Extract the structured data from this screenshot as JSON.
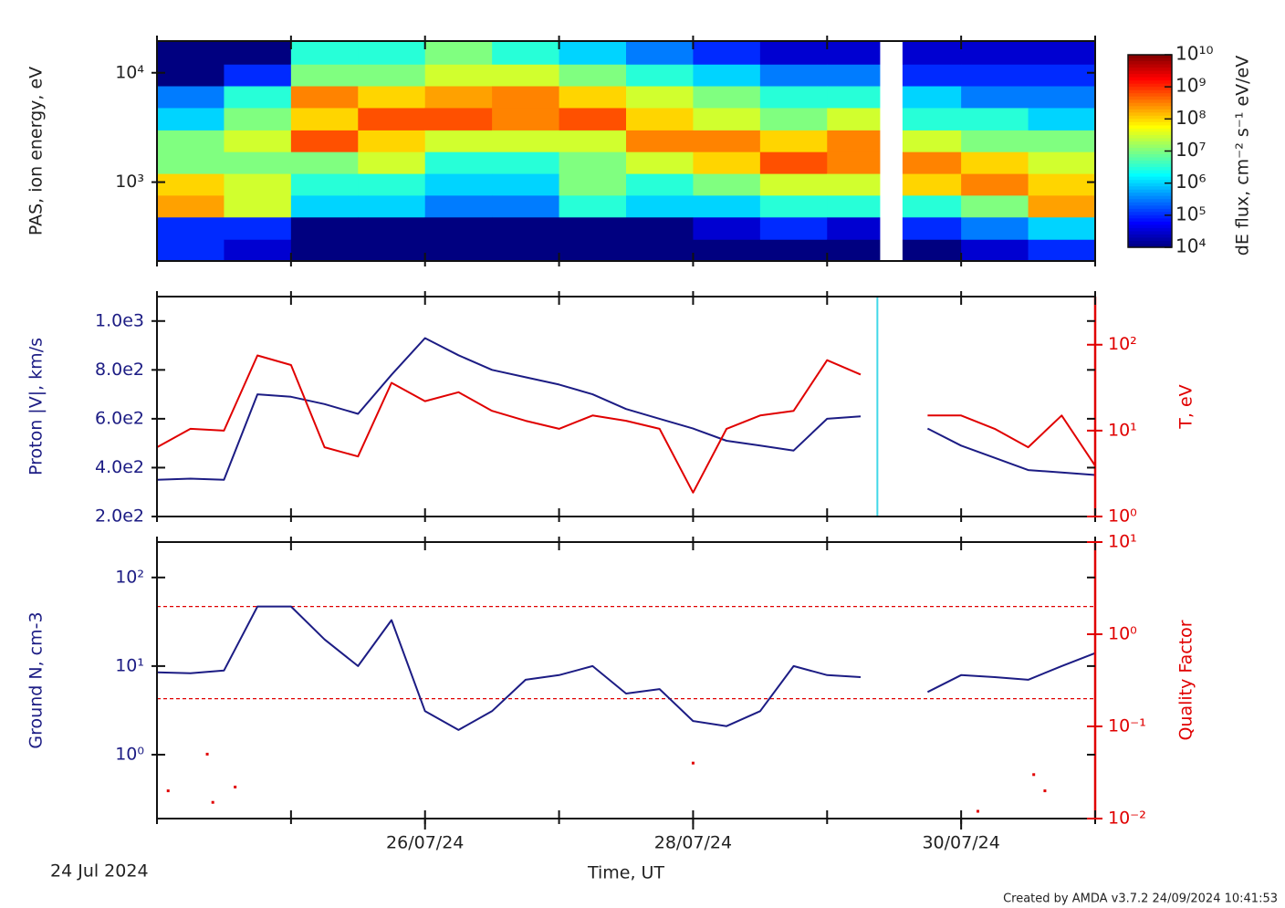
{
  "chart_data": [
    {
      "type": "heatmap",
      "ylabel": "PAS, ion energy, eV",
      "zlabel": "dE flux, cm⁻² s⁻¹ eV/eV",
      "xlim": [
        "2024-07-24T00:00",
        "2024-07-31T00:00"
      ],
      "xticks": [
        "2024-07-24T00:00",
        "2024-07-25T00:00",
        "2024-07-26T00:00",
        "2024-07-27T00:00",
        "2024-07-28T00:00",
        "2024-07-29T00:00",
        "2024-07-30T00:00",
        "2024-07-31T00:00"
      ],
      "ylog": true,
      "ylim": [
        190,
        19500
      ],
      "yticks": [
        {
          "value": 1000,
          "label": "10³"
        },
        {
          "value": 10000,
          "label": "10⁴"
        }
      ],
      "zlog": true,
      "zlim": [
        10000.0,
        10000000000.0
      ],
      "colormap": "jet",
      "zticks": [
        {
          "value": 10000.0,
          "label": "10⁴"
        },
        {
          "value": 100000.0,
          "label": "10⁵"
        },
        {
          "value": 1000000.0,
          "label": "10⁶"
        },
        {
          "value": 10000000.0,
          "label": "10⁷"
        },
        {
          "value": 100000000.0,
          "label": "10⁸"
        },
        {
          "value": 1000000000.0,
          "label": "10⁹"
        },
        {
          "value": 10000000000.0,
          "label": "10¹⁰"
        }
      ],
      "x_bins": [
        "2024-07-24T00:00",
        "2024-07-24T12:00",
        "2024-07-25T00:00",
        "2024-07-25T12:00",
        "2024-07-26T00:00",
        "2024-07-26T12:00",
        "2024-07-27T00:00",
        "2024-07-27T12:00",
        "2024-07-28T00:00",
        "2024-07-28T12:00",
        "2024-07-29T00:00",
        "2024-07-29T12:00",
        "2024-07-30T00:00",
        "2024-07-30T12:00",
        "2024-07-31T00:00"
      ],
      "y_bins": [
        190,
        300,
        480,
        760,
        1200,
        1900,
        3000,
        4800,
        7600,
        12000,
        19500
      ],
      "values": [
        [
          100000.0,
          100000.0,
          200000000.0,
          100000000.0,
          10000000.0,
          10000000.0,
          1000000.0,
          300000.0,
          10000.0,
          10000.0
        ],
        [
          30000.0,
          100000.0,
          30000000.0,
          30000000.0,
          10000000.0,
          30000000.0,
          10000000.0,
          3000000.0,
          100000.0,
          10000.0
        ],
        [
          10000.0,
          10000.0,
          1000000.0,
          3000000.0,
          10000000.0,
          600000000.0,
          100000000.0,
          300000000.0,
          10000000.0,
          3000000.0
        ],
        [
          10000.0,
          10000.0,
          1000000.0,
          3000000.0,
          30000000.0,
          100000000.0,
          600000000.0,
          100000000.0,
          10000000.0,
          3000000.0
        ],
        [
          10000.0,
          10000.0,
          300000.0,
          1000000.0,
          3000000.0,
          30000000.0,
          600000000.0,
          200000000.0,
          30000000.0,
          10000000.0
        ],
        [
          10000.0,
          10000.0,
          300000.0,
          1000000.0,
          3000000.0,
          30000000.0,
          300000000.0,
          300000000.0,
          30000000.0,
          3000000.0
        ],
        [
          10000.0,
          10000.0,
          3000000.0,
          10000000.0,
          10000000.0,
          30000000.0,
          600000000.0,
          100000000.0,
          10000000.0,
          1000000.0
        ],
        [
          10000.0,
          10000.0,
          1000000.0,
          3000000.0,
          30000000.0,
          300000000.0,
          100000000.0,
          30000000.0,
          3000000.0,
          300000.0
        ],
        [
          10000.0,
          30000.0,
          1000000.0,
          10000000.0,
          100000000.0,
          300000000.0,
          30000000.0,
          10000000.0,
          1000000.0,
          100000.0
        ],
        [
          10000.0,
          100000.0,
          3000000.0,
          30000000.0,
          600000000.0,
          100000000.0,
          10000000.0,
          3000000.0,
          300000.0,
          30000.0
        ],
        [
          10000.0,
          30000.0,
          3000000.0,
          30000000.0,
          300000000.0,
          300000000.0,
          30000000.0,
          3000000.0,
          300000.0,
          30000.0
        ],
        [
          10000.0,
          100000.0,
          3000000.0,
          100000000.0,
          300000000.0,
          30000000.0,
          3000000.0,
          1000000.0,
          100000.0,
          30000.0
        ],
        [
          30000.0,
          300000.0,
          10000000.0,
          300000000.0,
          100000000.0,
          10000000.0,
          3000000.0,
          300000.0,
          100000.0,
          30000.0
        ],
        [
          100000.0,
          1000000.0,
          200000000.0,
          100000000.0,
          30000000.0,
          10000000.0,
          1000000.0,
          300000.0,
          100000.0,
          30000.0
        ]
      ],
      "gaps": [
        [
          "2024-07-29T09:30",
          "2024-07-29T13:30"
        ]
      ]
    },
    {
      "type": "line",
      "ylabel": "Proton |V|, km/s",
      "y2label": "T, eV",
      "xlim": [
        "2024-07-24T00:00",
        "2024-07-31T00:00"
      ],
      "xticks": [
        "2024-07-24T00:00",
        "2024-07-25T00:00",
        "2024-07-26T00:00",
        "2024-07-27T00:00",
        "2024-07-28T00:00",
        "2024-07-29T00:00",
        "2024-07-30T00:00",
        "2024-07-31T00:00"
      ],
      "ylim": [
        200,
        1100
      ],
      "yticks": [
        {
          "value": 200,
          "label": "2.0e2"
        },
        {
          "value": 400,
          "label": "4.0e2"
        },
        {
          "value": 600,
          "label": "6.0e2"
        },
        {
          "value": 800,
          "label": "8.0e2"
        },
        {
          "value": 1000,
          "label": "1.0e3"
        }
      ],
      "y2log": true,
      "y2lim": [
        1,
        363
      ],
      "y2ticks": [
        {
          "value": 1,
          "label": "10⁰"
        },
        {
          "value": 10,
          "label": "10¹"
        },
        {
          "value": 100,
          "label": "10²"
        }
      ],
      "x": [
        "2024-07-24T00:00",
        "2024-07-24T06:00",
        "2024-07-24T12:00",
        "2024-07-24T18:00",
        "2024-07-25T00:00",
        "2024-07-25T06:00",
        "2024-07-25T12:00",
        "2024-07-25T18:00",
        "2024-07-26T00:00",
        "2024-07-26T06:00",
        "2024-07-26T12:00",
        "2024-07-26T18:00",
        "2024-07-27T00:00",
        "2024-07-27T06:00",
        "2024-07-27T12:00",
        "2024-07-27T18:00",
        "2024-07-28T00:00",
        "2024-07-28T06:00",
        "2024-07-28T12:00",
        "2024-07-28T18:00",
        "2024-07-29T00:00",
        "2024-07-29T06:00",
        "2024-07-29T12:00",
        "2024-07-29T18:00",
        "2024-07-30T00:00",
        "2024-07-30T06:00",
        "2024-07-30T12:00",
        "2024-07-30T18:00",
        "2024-07-31T00:00"
      ],
      "series": [
        {
          "color": "#1c1c84",
          "values": [
            350,
            355,
            350,
            700,
            690,
            660,
            620,
            780,
            930,
            860,
            800,
            770,
            740,
            700,
            640,
            600,
            560,
            510,
            490,
            470,
            600,
            610,
            null,
            560,
            490,
            440,
            390,
            380,
            370
          ]
        },
        {
          "color": "#e00000",
          "axis": "y2",
          "values": [
            6.4,
            10.5,
            10,
            75,
            58,
            6.4,
            5,
            36,
            22,
            28,
            17,
            13,
            10.5,
            15,
            13,
            10.5,
            1.9,
            10.5,
            15,
            17,
            66,
            45,
            null,
            15,
            15,
            10.5,
            6.4,
            15,
            3.9
          ]
        }
      ],
      "vlines": [
        {
          "x": "2024-07-29T09:00",
          "color": "#40d8e8"
        }
      ]
    },
    {
      "type": "line",
      "ylabel": "Ground N, cm-3",
      "y2label": "Quality Factor",
      "xlabel": "Time, UT",
      "start_label": "24 Jul 2024",
      "xlim": [
        "2024-07-24T00:00",
        "2024-07-31T00:00"
      ],
      "xticks": [
        "2024-07-24T00:00",
        "2024-07-25T00:00",
        "2024-07-26T00:00",
        "2024-07-27T00:00",
        "2024-07-28T00:00",
        "2024-07-29T00:00",
        "2024-07-30T00:00",
        "2024-07-31T00:00"
      ],
      "xtick_labels": [
        {
          "value": "2024-07-26T00:00",
          "label": "26/07/24"
        },
        {
          "value": "2024-07-28T00:00",
          "label": "28/07/24"
        },
        {
          "value": "2024-07-30T00:00",
          "label": "30/07/24"
        }
      ],
      "ylog": true,
      "ylim": [
        0.19,
        251
      ],
      "yticks": [
        {
          "value": 1,
          "label": "10⁰"
        },
        {
          "value": 10,
          "label": "10¹"
        },
        {
          "value": 100,
          "label": "10²"
        }
      ],
      "y2log": true,
      "y2lim": [
        0.01,
        10
      ],
      "y2ticks": [
        {
          "value": 0.01,
          "label": "10⁻²"
        },
        {
          "value": 0.1,
          "label": "10⁻¹"
        },
        {
          "value": 1,
          "label": "10⁰"
        },
        {
          "value": 10,
          "label": "10¹"
        }
      ],
      "x": [
        "2024-07-24T00:00",
        "2024-07-24T06:00",
        "2024-07-24T12:00",
        "2024-07-24T18:00",
        "2024-07-25T00:00",
        "2024-07-25T06:00",
        "2024-07-25T12:00",
        "2024-07-25T18:00",
        "2024-07-26T00:00",
        "2024-07-26T06:00",
        "2024-07-26T12:00",
        "2024-07-26T18:00",
        "2024-07-27T00:00",
        "2024-07-27T06:00",
        "2024-07-27T12:00",
        "2024-07-27T18:00",
        "2024-07-28T00:00",
        "2024-07-28T06:00",
        "2024-07-28T12:00",
        "2024-07-28T18:00",
        "2024-07-29T00:00",
        "2024-07-29T06:00",
        "2024-07-29T12:00",
        "2024-07-29T18:00",
        "2024-07-30T00:00",
        "2024-07-30T06:00",
        "2024-07-30T12:00",
        "2024-07-30T18:00",
        "2024-07-31T00:00"
      ],
      "series": [
        {
          "color": "#1c1c84",
          "values": [
            8.5,
            8.3,
            8.9,
            47,
            47,
            20,
            10,
            33,
            3.1,
            1.9,
            3.1,
            7,
            7.9,
            10,
            4.9,
            5.5,
            2.4,
            2.1,
            3.1,
            10,
            7.9,
            7.5,
            null,
            5.1,
            7.9,
            7.5,
            7,
            10,
            14
          ]
        },
        {
          "color": "#e00000",
          "axis": "y2",
          "mode": "markers",
          "x": [
            "2024-07-24T02:00",
            "2024-07-24T09:00",
            "2024-07-24T10:00",
            "2024-07-24T14:00",
            "2024-07-28T00:00",
            "2024-07-30T03:00",
            "2024-07-30T13:00",
            "2024-07-30T15:00"
          ],
          "values": [
            0.02,
            0.05,
            0.015,
            0.022,
            0.04,
            0.012,
            0.03,
            0.02
          ]
        }
      ],
      "hlines": [
        {
          "value": 2,
          "axis": "y2",
          "color": "#e00000"
        },
        {
          "value": 0.2,
          "axis": "y2",
          "color": "#e00000"
        }
      ]
    }
  ],
  "footer": "Created by AMDA v3.7.2 24/09/2024 10:41:53"
}
